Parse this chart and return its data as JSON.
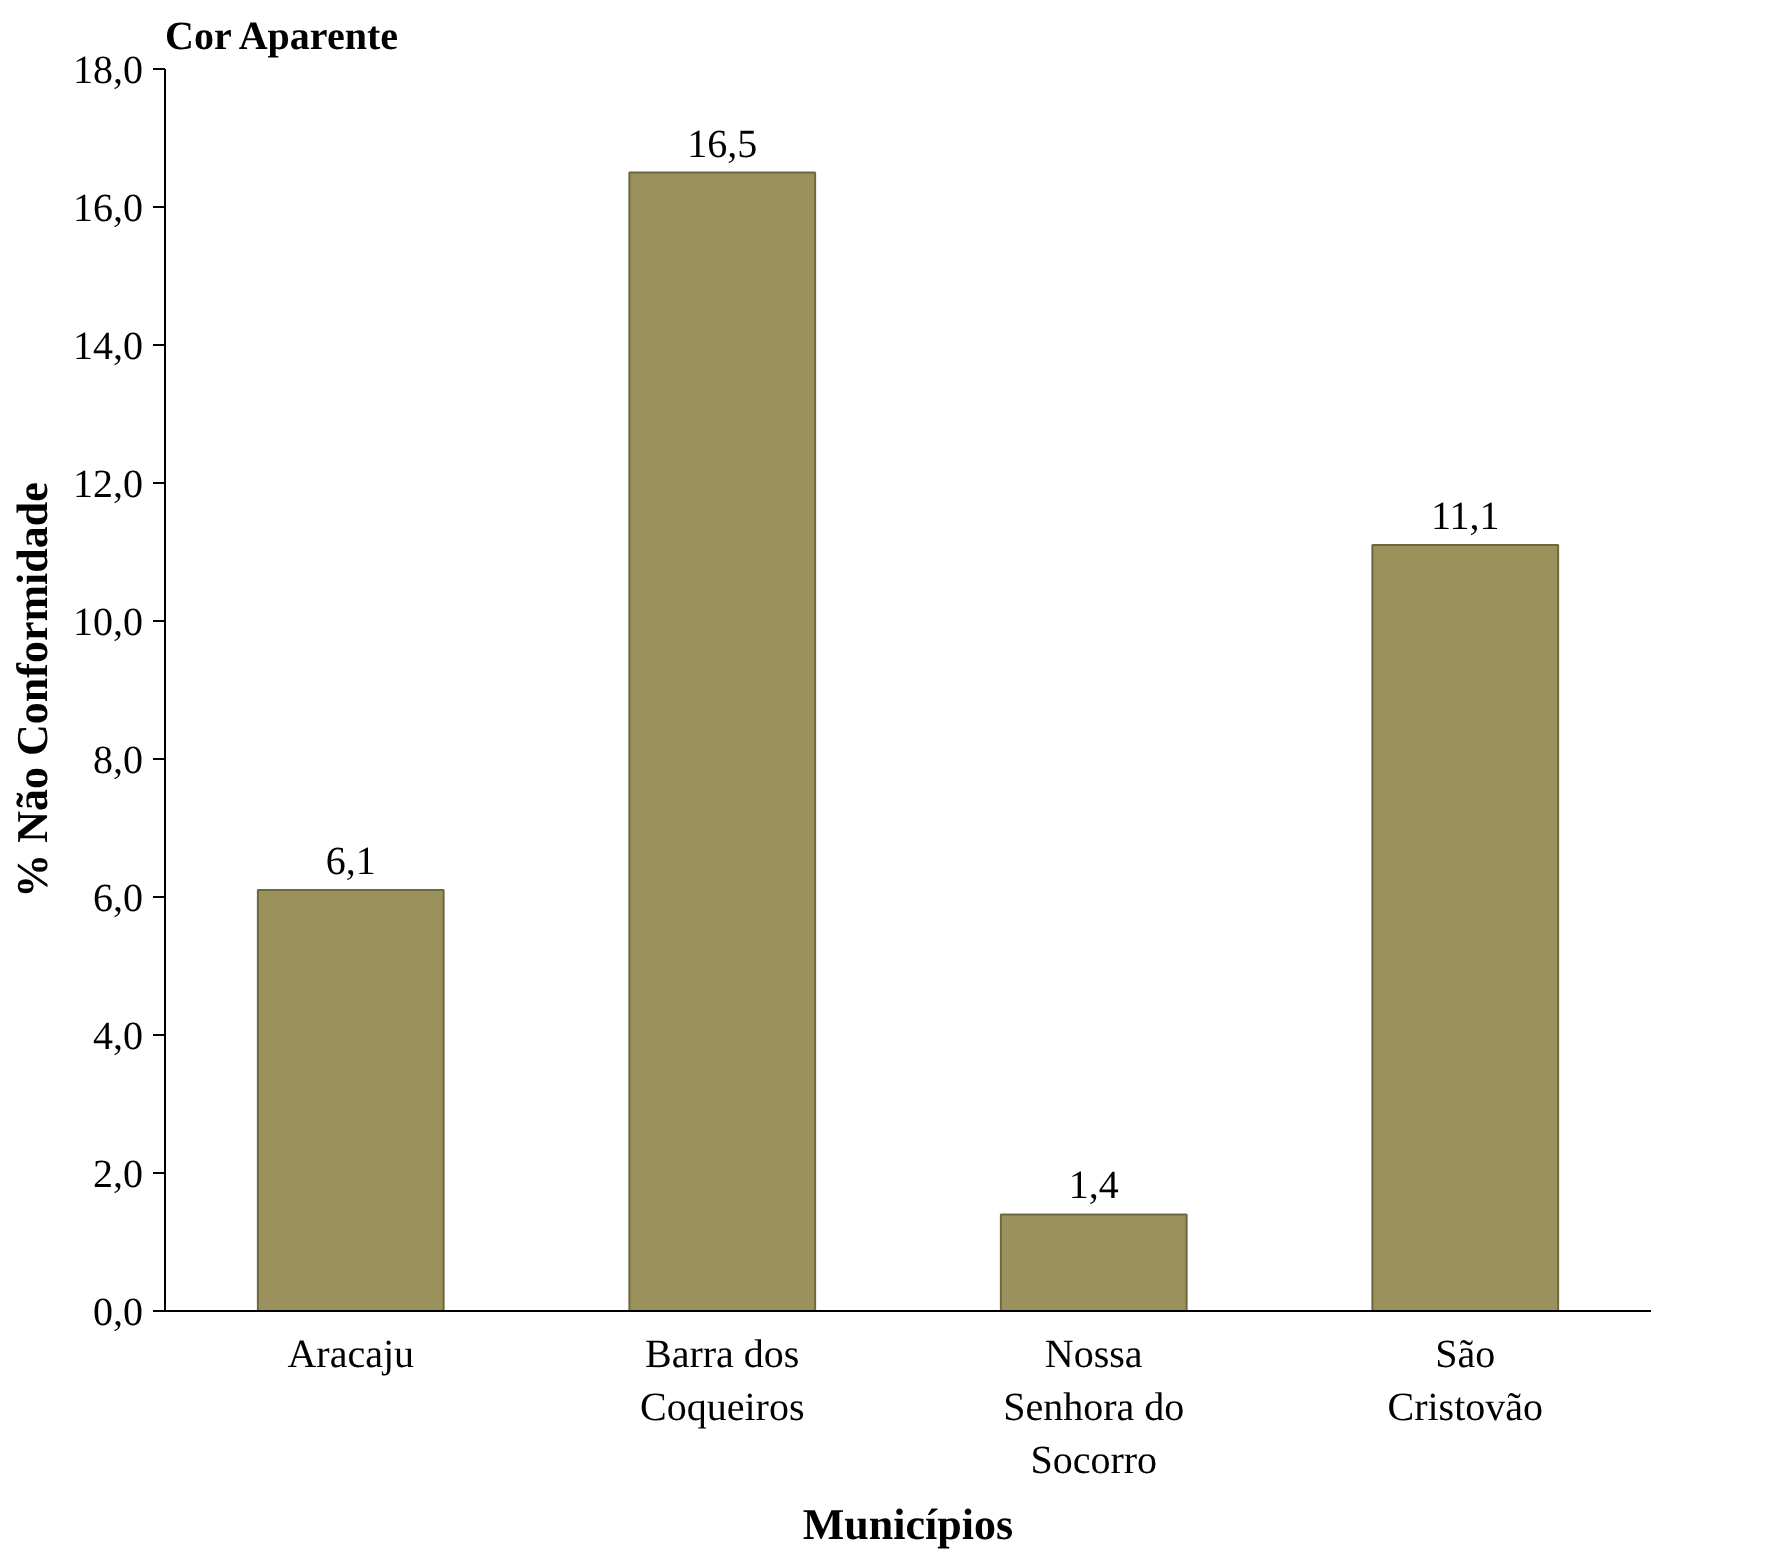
{
  "chart_data": {
    "type": "bar",
    "title": "Cor Aparente",
    "xlabel": "Municípios",
    "ylabel": "% Não Conformidade",
    "categories": [
      "Aracaju",
      "Barra dos Coqueiros",
      "Nossa Senhora do Socorro",
      "São Cristovão"
    ],
    "values": [
      6.1,
      16.5,
      1.4,
      11.1
    ],
    "value_labels": [
      "6,1",
      "16,5",
      "1,4",
      "11,1"
    ],
    "color": "#9a915c",
    "ylim": [
      0,
      18
    ],
    "yticks": [
      {
        "value": 0,
        "label": "0,0"
      },
      {
        "value": 2,
        "label": "2,0"
      },
      {
        "value": 4,
        "label": "4,0"
      },
      {
        "value": 6,
        "label": "6,0"
      },
      {
        "value": 8,
        "label": "8,0"
      },
      {
        "value": 10,
        "label": "10,0"
      },
      {
        "value": 12,
        "label": "12,0"
      },
      {
        "value": 14,
        "label": "14,0"
      },
      {
        "value": 16,
        "label": "16,0"
      },
      {
        "value": 18,
        "label": "18,0"
      }
    ],
    "grid": false
  }
}
